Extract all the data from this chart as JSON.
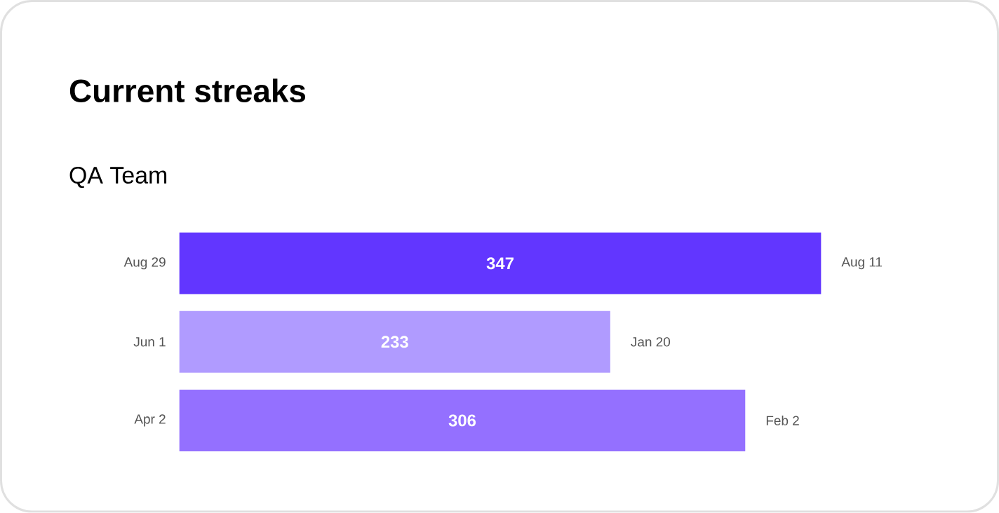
{
  "chart_data": {
    "type": "bar",
    "orientation": "horizontal",
    "title": "Current streaks",
    "subtitle": "QA Team",
    "categories": [
      "Aug 29",
      "Jun 1",
      "Apr 2"
    ],
    "values": [
      347,
      233,
      306
    ],
    "colors": [
      "#6236ff",
      "#b09bff",
      "#9470ff"
    ],
    "data_labels": true,
    "annotations": [
      "Aug 11",
      "Jan 20",
      "Feb 2"
    ]
  }
}
